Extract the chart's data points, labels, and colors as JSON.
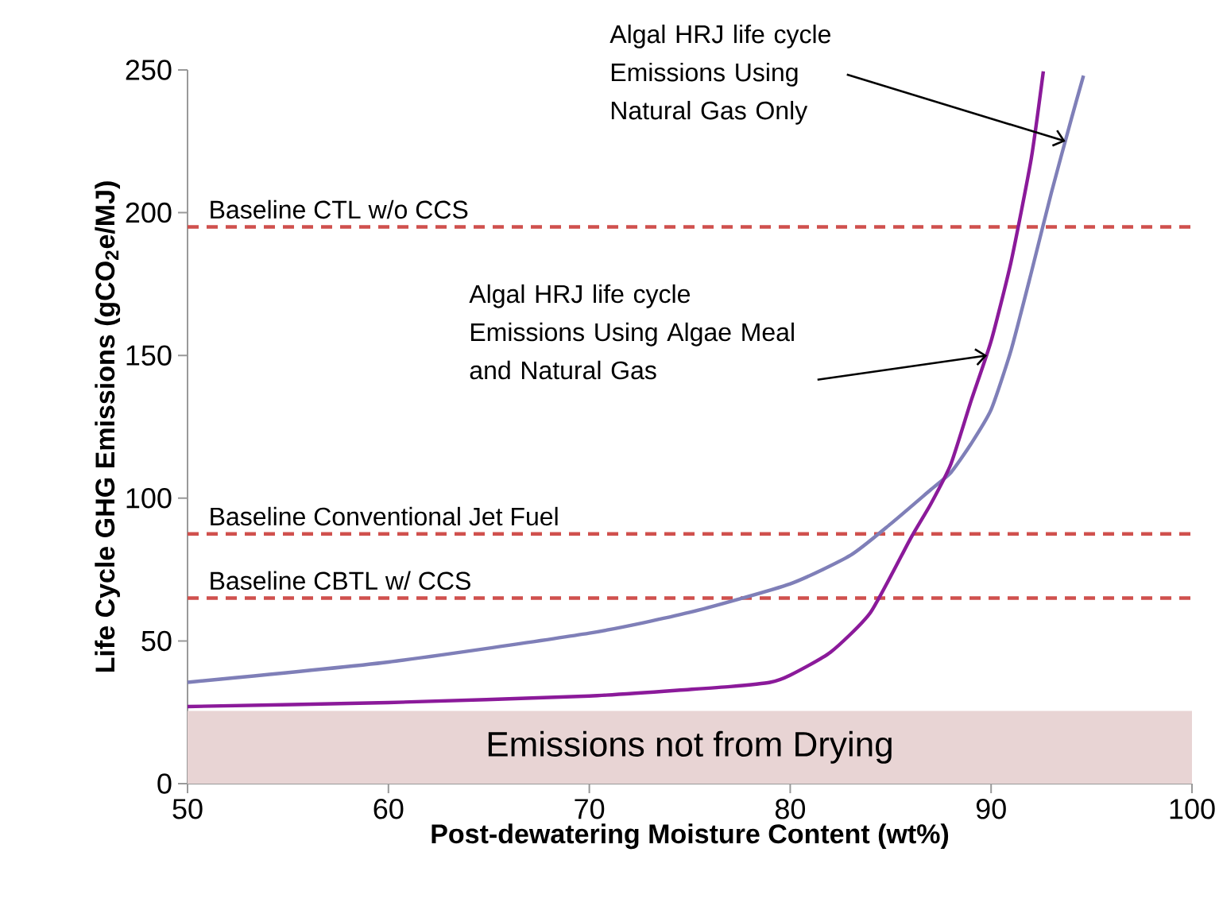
{
  "chart_data": {
    "type": "line",
    "xlabel": "Post-dewatering Moisture Content (wt%)",
    "ylabel": "Life Cycle GHG Emissions (gCO$_{2}$e/MJ)",
    "xlim": [
      50,
      100
    ],
    "ylim": [
      0,
      250
    ],
    "xticks": [
      50,
      60,
      70,
      80,
      90,
      100
    ],
    "yticks": [
      0,
      50,
      100,
      150,
      200,
      250
    ],
    "grid": false,
    "marker": "none",
    "line_style": "solid",
    "series": [
      {
        "color": "#7f7fb8",
        "x": [
          50,
          60,
          70,
          75,
          80,
          83,
          85,
          87,
          88,
          89,
          90,
          91,
          92,
          93,
          94,
          94.6
        ],
        "values": [
          35.5,
          42.6,
          52.7,
          60,
          70,
          80,
          91,
          103,
          109,
          119,
          131,
          152,
          179,
          207,
          233,
          248
        ]
      },
      {
        "color": "#8b1a9a",
        "x": [
          50,
          60,
          70,
          75,
          77,
          79,
          80,
          82,
          84,
          86,
          87,
          88,
          89,
          90,
          91,
          92,
          92.6
        ],
        "values": [
          27,
          28.4,
          30.7,
          33,
          34,
          35.5,
          38,
          46,
          60,
          86,
          98,
          112,
          134,
          155,
          183,
          219,
          249.5
        ]
      }
    ],
    "ref_lines": [
      {
        "axis": "y",
        "value": 195,
        "label": "Baseline CTL w/o CCS",
        "color": "#d0504d",
        "line_style": "dashed"
      },
      {
        "axis": "y",
        "value": 87.5,
        "label": "Baseline Conventional Jet Fuel",
        "color": "#d0504d",
        "line_style": "dashed"
      },
      {
        "axis": "y",
        "value": 65,
        "label": "Baseline CBTL w/ CCS",
        "color": "#d0504d",
        "line_style": "dashed"
      }
    ],
    "bands": [
      {
        "axis": "y",
        "from": 0,
        "to": 25.5,
        "label": "Emissions not from Drying",
        "color": "#e8d4d4"
      }
    ],
    "annotations": [
      {
        "text": "Algal HRJ life cycle Emissions Using Natural Gas Only",
        "x": 93.7,
        "y": 225
      },
      {
        "text": "Algal HRJ life cycle Emissions Using Algae Meal and Natural Gas",
        "x": 89.8,
        "y": 150
      }
    ]
  }
}
